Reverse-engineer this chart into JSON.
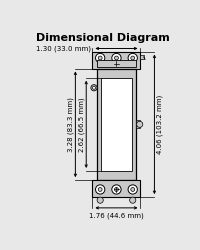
{
  "title": "Dimensional Diagram",
  "bg_color": "#e8e8e8",
  "switch_color": "#c8c8c8",
  "line_color": "#000000",
  "white": "#ffffff",
  "dim_top_label": "1.30 (33.0 mm)",
  "dim_left_outer_label": "3.28 (83.3 mm)",
  "dim_left_inner_label": "2.62 (66.5 mm)",
  "dim_right_label": "4.06 (103.2 mm)",
  "dim_bottom_label": "1.76 (44.6 mm)",
  "fig_width": 2.0,
  "fig_height": 2.5,
  "dpi": 100
}
